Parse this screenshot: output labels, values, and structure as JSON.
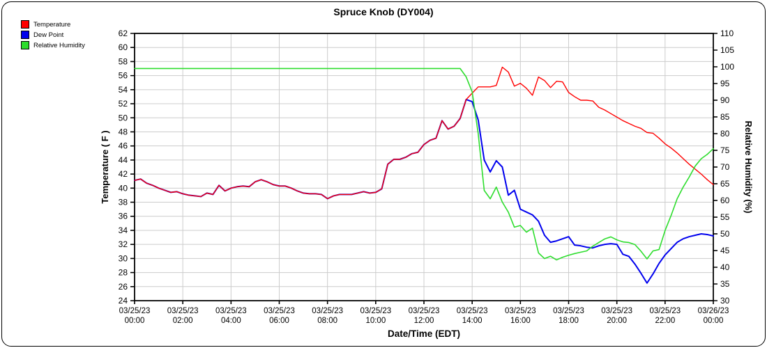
{
  "window": {
    "title": "Spruce Knob (DY004)"
  },
  "legend": {
    "items": [
      {
        "label": "Temperature",
        "color": "#ff0000"
      },
      {
        "label": "Dew Point",
        "color": "#0000ee"
      },
      {
        "label": "Relative Humidity",
        "color": "#2ddd2d"
      }
    ]
  },
  "chart_data": {
    "type": "line",
    "title": "Spruce Knob (DY004)",
    "xlabel": "Date/Time (EDT)",
    "ylabel_left": "Temperature ( F )",
    "ylabel_right": "Relative Humidity (%)",
    "ylim_left": [
      24,
      62
    ],
    "yticks_left": [
      24,
      26,
      28,
      30,
      32,
      34,
      36,
      38,
      40,
      42,
      44,
      46,
      48,
      50,
      52,
      54,
      56,
      58,
      60,
      62
    ],
    "ylim_right": [
      30,
      110
    ],
    "yticks_right": [
      30,
      35,
      40,
      45,
      50,
      55,
      60,
      65,
      70,
      75,
      80,
      85,
      90,
      95,
      100,
      105,
      110
    ],
    "grid": true,
    "grid_color": "#cccccc",
    "x_start_hour": 0,
    "x_step_hours": 0.25,
    "x_tick_hours": [
      0,
      2,
      4,
      6,
      8,
      10,
      12,
      14,
      16,
      18,
      20,
      22,
      24
    ],
    "x_tick_labels": [
      {
        "date": "03/25/23",
        "time": "00:00"
      },
      {
        "date": "03/25/23",
        "time": "02:00"
      },
      {
        "date": "03/25/23",
        "time": "04:00"
      },
      {
        "date": "03/25/23",
        "time": "06:00"
      },
      {
        "date": "03/25/23",
        "time": "08:00"
      },
      {
        "date": "03/25/23",
        "time": "10:00"
      },
      {
        "date": "03/25/23",
        "time": "12:00"
      },
      {
        "date": "03/25/23",
        "time": "14:00"
      },
      {
        "date": "03/25/23",
        "time": "16:00"
      },
      {
        "date": "03/25/23",
        "time": "18:00"
      },
      {
        "date": "03/25/23",
        "time": "20:00"
      },
      {
        "date": "03/25/23",
        "time": "22:00"
      },
      {
        "date": "03/26/23",
        "time": "00:00"
      }
    ],
    "series": [
      {
        "name": "Temperature",
        "axis": "left",
        "color": "#ff0000",
        "width": 1.4,
        "values": [
          41.1,
          41.3,
          40.7,
          40.4,
          40.0,
          39.7,
          39.4,
          39.5,
          39.2,
          39.0,
          38.9,
          38.8,
          39.3,
          39.1,
          40.4,
          39.6,
          40.0,
          40.2,
          40.3,
          40.2,
          40.9,
          41.2,
          40.9,
          40.5,
          40.3,
          40.3,
          40.0,
          39.6,
          39.3,
          39.2,
          39.2,
          39.1,
          38.5,
          38.9,
          39.1,
          39.1,
          39.1,
          39.3,
          39.5,
          39.3,
          39.4,
          39.9,
          43.4,
          44.1,
          44.1,
          44.4,
          44.9,
          45.1,
          46.2,
          46.8,
          47.1,
          49.6,
          48.4,
          48.8,
          49.9,
          52.6,
          53.5,
          54.4,
          54.4,
          54.4,
          54.6,
          57.2,
          56.5,
          54.5,
          54.9,
          54.2,
          53.2,
          55.8,
          55.3,
          54.3,
          55.2,
          55.1,
          53.6,
          53.0,
          52.5,
          52.5,
          52.4,
          51.5,
          51.1,
          50.6,
          50.1,
          49.6,
          49.2,
          48.8,
          48.5,
          47.9,
          47.8,
          47.1,
          46.3,
          45.7,
          45.0,
          44.2,
          43.4,
          42.7,
          42.0,
          41.2,
          40.5
        ]
      },
      {
        "name": "Dew Point",
        "axis": "left",
        "color": "#0000ee",
        "width": 2.0,
        "values": [
          41.1,
          41.3,
          40.7,
          40.4,
          40.0,
          39.7,
          39.4,
          39.5,
          39.2,
          39.0,
          38.9,
          38.8,
          39.3,
          39.1,
          40.4,
          39.6,
          40.0,
          40.2,
          40.3,
          40.2,
          40.9,
          41.2,
          40.9,
          40.5,
          40.3,
          40.3,
          40.0,
          39.6,
          39.3,
          39.2,
          39.2,
          39.1,
          38.5,
          38.9,
          39.1,
          39.1,
          39.1,
          39.3,
          39.5,
          39.3,
          39.4,
          39.9,
          43.4,
          44.1,
          44.1,
          44.4,
          44.9,
          45.1,
          46.2,
          46.8,
          47.1,
          49.6,
          48.4,
          48.8,
          49.9,
          52.6,
          52.3,
          49.7,
          44.0,
          42.3,
          43.9,
          43.0,
          39.0,
          39.7,
          37.0,
          36.6,
          36.2,
          35.3,
          33.3,
          32.3,
          32.5,
          32.8,
          33.1,
          31.9,
          31.8,
          31.6,
          31.5,
          31.8,
          32.0,
          32.1,
          32.0,
          30.6,
          30.3,
          29.2,
          27.9,
          26.5,
          27.8,
          29.3,
          30.5,
          31.4,
          32.3,
          32.8,
          33.1,
          33.3,
          33.5,
          33.4,
          33.2
        ]
      },
      {
        "name": "Relative Humidity",
        "axis": "right",
        "color": "#2ddd2d",
        "width": 1.6,
        "values": [
          99.5,
          99.5,
          99.5,
          99.5,
          99.5,
          99.5,
          99.5,
          99.5,
          99.5,
          99.5,
          99.5,
          99.5,
          99.5,
          99.5,
          99.5,
          99.5,
          99.5,
          99.5,
          99.5,
          99.5,
          99.5,
          99.5,
          99.5,
          99.5,
          99.5,
          99.5,
          99.5,
          99.5,
          99.5,
          99.5,
          99.5,
          99.5,
          99.5,
          99.5,
          99.5,
          99.5,
          99.5,
          99.5,
          99.5,
          99.5,
          99.5,
          99.5,
          99.5,
          99.5,
          99.5,
          99.5,
          99.5,
          99.5,
          99.5,
          99.5,
          99.5,
          99.5,
          99.5,
          99.5,
          99.5,
          97.0,
          92.5,
          80.0,
          63.0,
          60.5,
          64.0,
          59.5,
          56.5,
          52.0,
          52.5,
          50.5,
          51.7,
          44.3,
          42.6,
          43.3,
          42.2,
          43.0,
          43.6,
          44.1,
          44.5,
          44.9,
          46.3,
          47.4,
          48.5,
          49.1,
          48.2,
          47.6,
          47.4,
          46.8,
          44.8,
          42.5,
          44.9,
          45.3,
          51.0,
          55.5,
          60.5,
          64.0,
          67.0,
          70.3,
          72.5,
          73.8,
          75.5
        ]
      }
    ]
  }
}
